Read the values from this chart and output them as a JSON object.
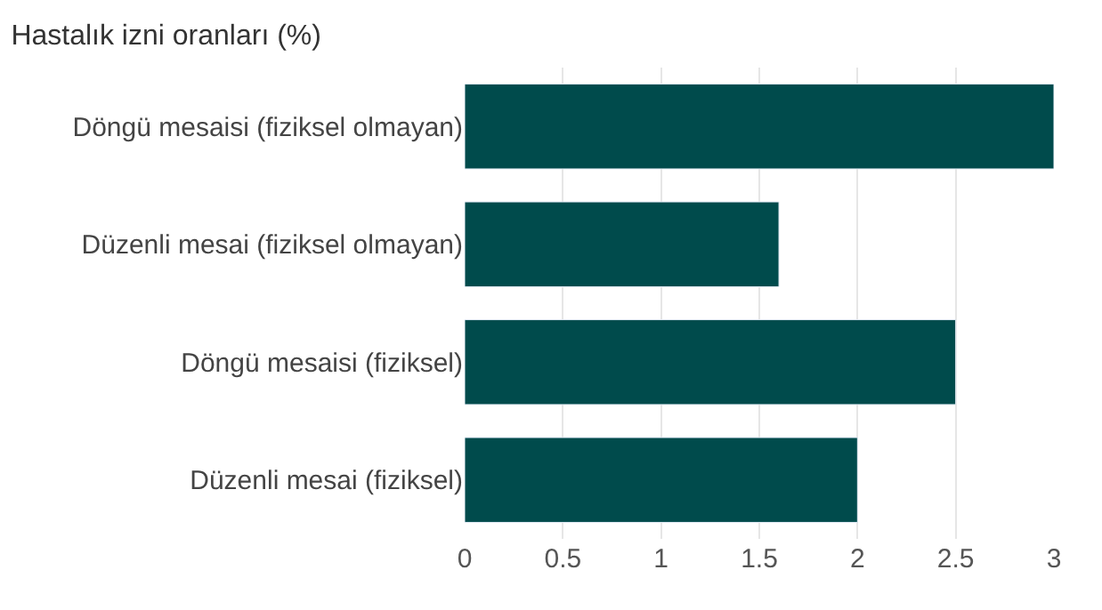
{
  "chart_data": {
    "type": "bar",
    "orientation": "horizontal",
    "title": "Hastalık izni oranları (%)",
    "categories": [
      "Döngü mesaisi (fiziksel olmayan)",
      "Düzenli mesai (fiziksel olmayan)",
      "Döngü mesaisi (fiziksel)",
      "Düzenli mesai (fiziksel)"
    ],
    "values": [
      3,
      1.6,
      2.5,
      2
    ],
    "color": "#004b4c",
    "xlim": [
      0,
      3
    ],
    "xticks": [
      0,
      0.5,
      1,
      1.5,
      2,
      2.5,
      3
    ],
    "grid": "x"
  }
}
